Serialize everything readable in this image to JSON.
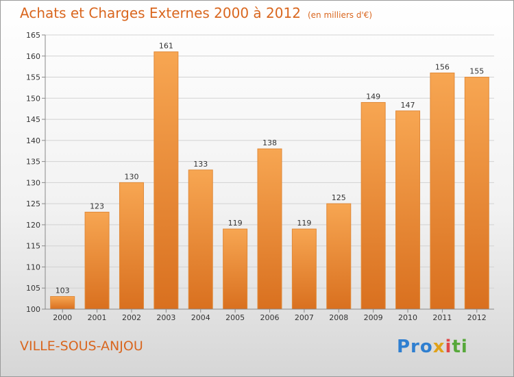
{
  "chart_data": {
    "type": "bar",
    "title": "Achats et Charges Externes 2000 à 2012",
    "subtitle": "(en milliers d'€)",
    "categories": [
      "2000",
      "2001",
      "2002",
      "2003",
      "2004",
      "2005",
      "2006",
      "2007",
      "2008",
      "2009",
      "2010",
      "2011",
      "2012"
    ],
    "values": [
      103,
      123,
      130,
      161,
      133,
      119,
      138,
      119,
      125,
      149,
      147,
      156,
      155
    ],
    "ylim": [
      100,
      165
    ],
    "yticks": [
      100,
      105,
      110,
      115,
      120,
      125,
      130,
      135,
      140,
      145,
      150,
      155,
      160,
      165
    ],
    "grid": true,
    "legend": "none",
    "colors": {
      "bar": "#f0913a",
      "text": "#d9661e"
    }
  },
  "location": "VILLE-SOUS-ANJOU",
  "logo": {
    "p1": "Pro",
    "p2": "x",
    "p3": "i",
    "p4": "ti"
  }
}
